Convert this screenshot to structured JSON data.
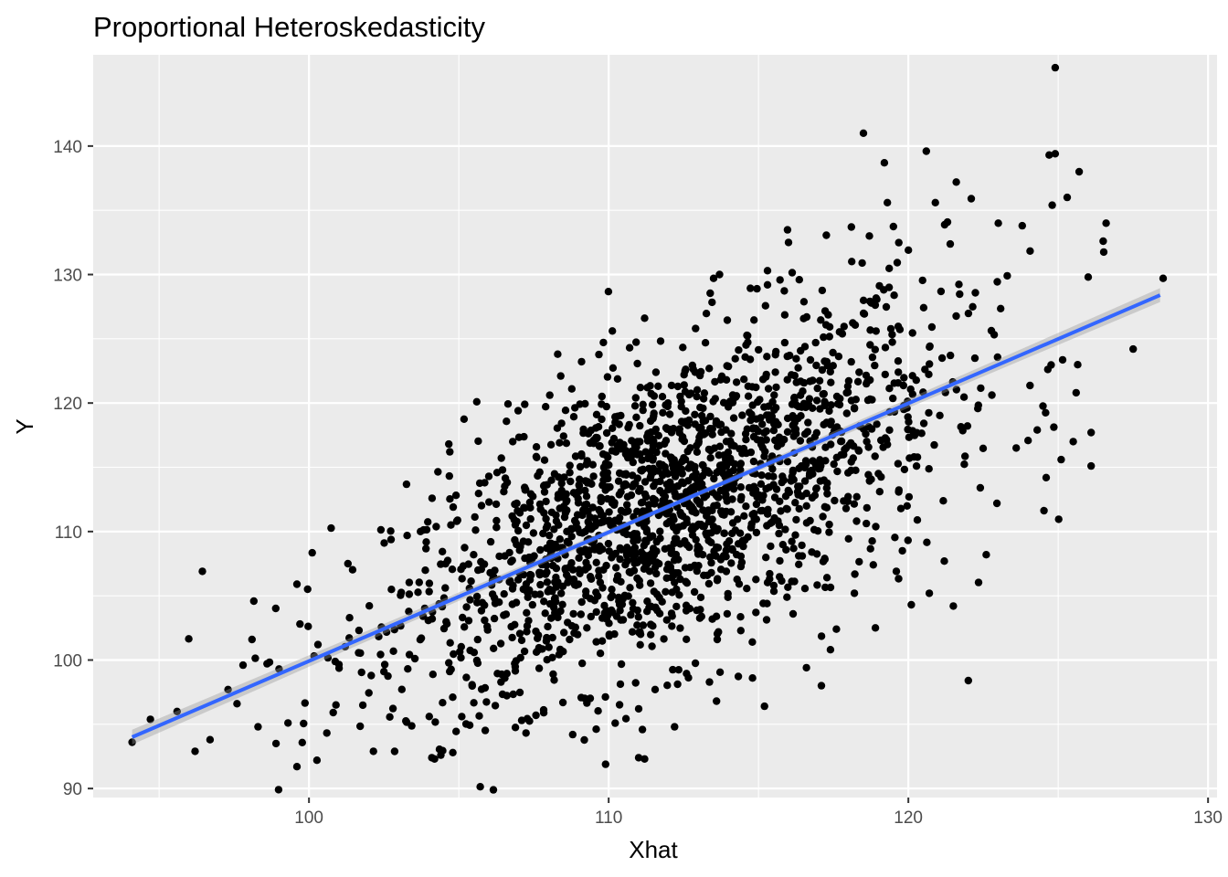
{
  "chart_data": {
    "type": "scatter",
    "title": "Proportional Heteroskedasticity",
    "xlabel": "Xhat",
    "ylabel": "Y",
    "xlim": [
      92.8,
      130.3
    ],
    "ylim": [
      89.3,
      147.1
    ],
    "x_ticks": [
      100,
      110,
      120,
      130
    ],
    "y_ticks": [
      90,
      100,
      110,
      120,
      130,
      140
    ],
    "x_tick_labels": [
      "100",
      "110",
      "120",
      "130"
    ],
    "y_tick_labels": [
      "90",
      "100",
      "110",
      "120",
      "130",
      "140"
    ],
    "grid": true,
    "legend": "none",
    "point_count": 2000,
    "visible_points": [
      [
        94.1,
        93.6
      ],
      [
        95.6,
        96.0
      ],
      [
        96.2,
        92.9
      ],
      [
        96.7,
        93.8
      ],
      [
        97.3,
        97.7
      ],
      [
        97.6,
        96.6
      ],
      [
        97.8,
        99.6
      ],
      [
        98.1,
        101.6
      ],
      [
        98.3,
        94.8
      ],
      [
        98.9,
        93.5
      ],
      [
        99.0,
        99.3
      ],
      [
        99.3,
        95.1
      ],
      [
        99.6,
        91.7
      ],
      [
        99.6,
        105.9
      ],
      [
        99.7,
        102.8
      ],
      [
        100.3,
        101.2
      ],
      [
        100.9,
        96.5
      ],
      [
        101.3,
        107.5
      ],
      [
        102.5,
        99.1
      ],
      [
        104.1,
        92.4
      ],
      [
        104.4,
        92.6
      ],
      [
        104.8,
        92.8
      ],
      [
        104.7,
        116.2
      ],
      [
        105.1,
        95.6
      ],
      [
        105.6,
        120.1
      ],
      [
        106.0,
        114.3
      ],
      [
        106.5,
        113.1
      ],
      [
        106.8,
        117.0
      ],
      [
        107.1,
        95.3
      ],
      [
        107.2,
        119.9
      ],
      [
        108.3,
        123.8
      ],
      [
        108.4,
        122.1
      ],
      [
        108.8,
        94.2
      ],
      [
        109.9,
        115.3
      ],
      [
        110.7,
        124.3
      ],
      [
        111.0,
        96.2
      ],
      [
        111.0,
        92.4
      ],
      [
        111.2,
        92.3
      ],
      [
        111.2,
        126.6
      ],
      [
        111.4,
        118.6
      ],
      [
        112.2,
        94.8
      ],
      [
        112.9,
        125.8
      ],
      [
        113.5,
        129.7
      ],
      [
        113.6,
        96.8
      ],
      [
        113.7,
        130.0
      ],
      [
        114.1,
        116.7
      ],
      [
        114.8,
        98.6
      ],
      [
        115.3,
        129.2
      ],
      [
        115.3,
        130.3
      ],
      [
        115.2,
        96.4
      ],
      [
        116.0,
        132.5
      ],
      [
        116.4,
        120.6
      ],
      [
        116.6,
        99.4
      ],
      [
        116.8,
        119.6
      ],
      [
        117.1,
        98.0
      ],
      [
        117.4,
        100.8
      ],
      [
        117.6,
        102.4
      ],
      [
        118.1,
        133.7
      ],
      [
        118.2,
        105.2
      ],
      [
        118.5,
        141.0
      ],
      [
        118.6,
        121.5
      ],
      [
        118.7,
        133.0
      ],
      [
        118.9,
        102.5
      ],
      [
        119.0,
        114.5
      ],
      [
        119.2,
        138.7
      ],
      [
        119.3,
        135.6
      ],
      [
        119.6,
        106.9
      ],
      [
        119.8,
        108.5
      ],
      [
        120.0,
        131.9
      ],
      [
        120.1,
        104.3
      ],
      [
        120.3,
        110.9
      ],
      [
        120.6,
        139.6
      ],
      [
        120.7,
        105.2
      ],
      [
        120.9,
        135.6
      ],
      [
        121.2,
        107.7
      ],
      [
        121.5,
        104.2
      ],
      [
        121.6,
        137.2
      ],
      [
        122.0,
        98.4
      ],
      [
        122.1,
        135.9
      ],
      [
        122.4,
        113.4
      ],
      [
        122.6,
        108.2
      ],
      [
        123.0,
        134.0
      ],
      [
        123.3,
        129.9
      ],
      [
        123.6,
        116.5
      ],
      [
        123.8,
        133.8
      ],
      [
        124.3,
        117.9
      ],
      [
        124.6,
        114.2
      ],
      [
        124.7,
        139.3
      ],
      [
        124.8,
        135.4
      ],
      [
        124.9,
        146.1
      ],
      [
        124.9,
        139.4
      ],
      [
        125.1,
        115.6
      ],
      [
        125.3,
        136.0
      ],
      [
        125.5,
        117.0
      ],
      [
        125.6,
        120.8
      ],
      [
        125.7,
        138.0
      ],
      [
        126.0,
        129.8
      ],
      [
        126.1,
        115.1
      ],
      [
        126.1,
        117.7
      ],
      [
        126.5,
        132.6
      ],
      [
        126.6,
        134.0
      ],
      [
        127.5,
        124.2
      ],
      [
        128.5,
        129.7
      ]
    ],
    "regression_line": {
      "method": "linear",
      "x": [
        94.1,
        128.4
      ],
      "y": [
        94.0,
        128.4
      ],
      "color": "#3366FF",
      "ci_band": true
    }
  }
}
